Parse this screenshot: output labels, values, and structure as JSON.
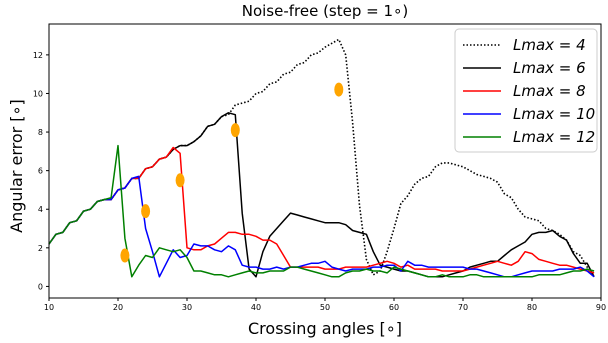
{
  "chart_data": {
    "type": "line",
    "title": "Noise-free (step = 1∘)",
    "xlabel": "Crossing angles [∘]",
    "ylabel": "Angular error [∘]",
    "xlim": [
      10,
      90
    ],
    "ylim": [
      -0.6,
      13.6
    ],
    "xticks": [
      10,
      20,
      30,
      40,
      50,
      60,
      70,
      80,
      90
    ],
    "yticks": [
      0,
      2,
      4,
      6,
      8,
      10,
      12
    ],
    "grid": false,
    "legend_position": "top-right",
    "series": [
      {
        "name": "L_max = 4",
        "legend_label": "Lmax = 4",
        "color": "#000000",
        "style": "dotted",
        "x": [
          10,
          11,
          12,
          13,
          14,
          15,
          16,
          17,
          18,
          19,
          20,
          21,
          22,
          23,
          24,
          25,
          26,
          27,
          28,
          29,
          30,
          31,
          32,
          33,
          34,
          35,
          36,
          37,
          38,
          39,
          40,
          41,
          42,
          43,
          44,
          45,
          46,
          47,
          48,
          49,
          50,
          51,
          52,
          53,
          54,
          55,
          56,
          57,
          58,
          59,
          60,
          61,
          62,
          63,
          64,
          65,
          66,
          67,
          68,
          69,
          70,
          71,
          72,
          73,
          74,
          75,
          76,
          77,
          78,
          79,
          80,
          81,
          82,
          83,
          84,
          85,
          86,
          87,
          88,
          89
        ],
        "y": [
          2.2,
          2.7,
          2.8,
          3.3,
          3.4,
          3.9,
          4.0,
          4.4,
          4.5,
          4.5,
          5.0,
          5.1,
          5.6,
          5.6,
          6.1,
          6.2,
          6.6,
          6.7,
          7.1,
          7.3,
          7.3,
          7.5,
          7.8,
          8.3,
          8.4,
          8.8,
          8.9,
          9.4,
          9.5,
          9.6,
          10.0,
          10.1,
          10.5,
          10.6,
          11.0,
          11.1,
          11.5,
          11.6,
          12.0,
          12.1,
          12.4,
          12.6,
          12.8,
          12.0,
          8.5,
          4.2,
          1.4,
          0.6,
          0.8,
          1.8,
          3.0,
          4.3,
          4.7,
          5.3,
          5.6,
          5.7,
          6.2,
          6.4,
          6.4,
          6.3,
          6.2,
          6.0,
          5.8,
          5.7,
          5.6,
          5.4,
          4.8,
          4.6,
          4.0,
          3.6,
          3.5,
          3.4,
          3.0,
          2.9,
          2.7,
          2.4,
          1.8,
          1.6,
          1.0,
          0.5
        ]
      },
      {
        "name": "L_max = 6",
        "legend_label": "Lmax = 6",
        "color": "#000000",
        "style": "solid",
        "x": [
          10,
          11,
          12,
          13,
          14,
          15,
          16,
          17,
          18,
          19,
          20,
          21,
          22,
          23,
          24,
          25,
          26,
          27,
          28,
          29,
          30,
          31,
          32,
          33,
          34,
          35,
          36,
          37,
          38,
          39,
          40,
          41,
          42,
          43,
          44,
          45,
          46,
          47,
          48,
          49,
          50,
          51,
          52,
          53,
          54,
          55,
          56,
          57,
          58,
          59,
          60,
          61,
          62,
          63,
          64,
          65,
          66,
          67,
          68,
          69,
          70,
          71,
          72,
          73,
          74,
          75,
          76,
          77,
          78,
          79,
          80,
          81,
          82,
          83,
          84,
          85,
          86,
          87,
          88,
          89
        ],
        "y": [
          2.2,
          2.7,
          2.8,
          3.3,
          3.4,
          3.9,
          4.0,
          4.4,
          4.5,
          4.5,
          5.0,
          5.1,
          5.6,
          5.6,
          6.1,
          6.2,
          6.6,
          6.7,
          7.1,
          7.3,
          7.3,
          7.5,
          7.8,
          8.3,
          8.4,
          8.8,
          9.0,
          8.9,
          3.8,
          0.9,
          0.5,
          1.8,
          2.6,
          3.0,
          3.4,
          3.8,
          3.7,
          3.6,
          3.5,
          3.4,
          3.3,
          3.3,
          3.3,
          3.2,
          2.9,
          2.8,
          2.7,
          1.8,
          1.1,
          1.0,
          0.9,
          0.8,
          0.8,
          0.7,
          0.6,
          0.5,
          0.5,
          0.5,
          0.6,
          0.7,
          0.8,
          1.0,
          1.1,
          1.2,
          1.3,
          1.3,
          1.6,
          1.9,
          2.1,
          2.3,
          2.7,
          2.8,
          2.8,
          2.9,
          2.6,
          2.4,
          1.7,
          1.2,
          1.2,
          0.5
        ]
      },
      {
        "name": "L_max = 8",
        "legend_label": "Lmax = 8",
        "color": "#ff0000",
        "style": "solid",
        "x": [
          10,
          11,
          12,
          13,
          14,
          15,
          16,
          17,
          18,
          19,
          20,
          21,
          22,
          23,
          24,
          25,
          26,
          27,
          28,
          29,
          30,
          31,
          32,
          33,
          34,
          35,
          36,
          37,
          38,
          39,
          40,
          41,
          42,
          43,
          44,
          45,
          46,
          47,
          48,
          49,
          50,
          51,
          52,
          53,
          54,
          55,
          56,
          57,
          58,
          59,
          60,
          61,
          62,
          63,
          64,
          65,
          66,
          67,
          68,
          69,
          70,
          71,
          72,
          73,
          74,
          75,
          76,
          77,
          78,
          79,
          80,
          81,
          82,
          83,
          84,
          85,
          86,
          87,
          88,
          89
        ],
        "y": [
          2.2,
          2.7,
          2.8,
          3.3,
          3.4,
          3.9,
          4.0,
          4.4,
          4.5,
          4.5,
          5.0,
          5.1,
          5.6,
          5.6,
          6.1,
          6.2,
          6.6,
          6.7,
          7.2,
          6.9,
          2.0,
          1.9,
          1.9,
          2.1,
          2.2,
          2.5,
          2.8,
          2.8,
          2.7,
          2.7,
          2.6,
          2.4,
          2.4,
          2.2,
          1.6,
          1.0,
          1.0,
          1.0,
          1.0,
          1.0,
          0.9,
          0.9,
          0.9,
          1.0,
          1.0,
          1.0,
          1.0,
          1.1,
          1.2,
          1.3,
          1.2,
          1.0,
          1.1,
          0.9,
          0.9,
          0.9,
          0.9,
          0.8,
          0.8,
          0.8,
          0.8,
          0.9,
          1.0,
          1.1,
          1.2,
          1.3,
          1.2,
          1.1,
          1.3,
          1.8,
          1.7,
          1.4,
          1.3,
          1.2,
          1.1,
          1.1,
          1.0,
          0.9,
          0.8,
          0.7
        ]
      },
      {
        "name": "L_max = 10",
        "legend_label": "Lmax = 10",
        "color": "#0000ff",
        "style": "solid",
        "x": [
          10,
          11,
          12,
          13,
          14,
          15,
          16,
          17,
          18,
          19,
          20,
          21,
          22,
          23,
          24,
          25,
          26,
          27,
          28,
          29,
          30,
          31,
          32,
          33,
          34,
          35,
          36,
          37,
          38,
          39,
          40,
          41,
          42,
          43,
          44,
          45,
          46,
          47,
          48,
          49,
          50,
          51,
          52,
          53,
          54,
          55,
          56,
          57,
          58,
          59,
          60,
          61,
          62,
          63,
          64,
          65,
          66,
          67,
          68,
          69,
          70,
          71,
          72,
          73,
          74,
          75,
          76,
          77,
          78,
          79,
          80,
          81,
          82,
          83,
          84,
          85,
          86,
          87,
          88,
          89
        ],
        "y": [
          2.2,
          2.7,
          2.8,
          3.3,
          3.4,
          3.9,
          4.0,
          4.4,
          4.5,
          4.5,
          5.0,
          5.1,
          5.6,
          5.7,
          3.0,
          1.8,
          0.5,
          1.2,
          1.9,
          1.5,
          1.6,
          2.2,
          2.1,
          2.1,
          1.9,
          1.8,
          2.1,
          1.9,
          1.1,
          1.0,
          1.0,
          0.9,
          0.9,
          1.0,
          0.9,
          1.0,
          1.0,
          1.1,
          1.2,
          1.2,
          1.3,
          1.0,
          0.9,
          0.8,
          0.9,
          0.9,
          0.9,
          1.0,
          1.0,
          1.1,
          1.1,
          0.8,
          1.3,
          1.1,
          1.1,
          1.0,
          1.0,
          1.0,
          1.0,
          1.0,
          1.0,
          0.9,
          0.9,
          0.8,
          0.7,
          0.6,
          0.5,
          0.5,
          0.6,
          0.7,
          0.8,
          0.8,
          0.8,
          0.8,
          0.9,
          0.9,
          0.9,
          1.0,
          0.8,
          0.5
        ]
      },
      {
        "name": "L_max = 12",
        "legend_label": "Lmax = 12",
        "color": "#008000",
        "style": "solid",
        "x": [
          10,
          11,
          12,
          13,
          14,
          15,
          16,
          17,
          18,
          19,
          20,
          21,
          22,
          23,
          24,
          25,
          26,
          27,
          28,
          29,
          30,
          31,
          32,
          33,
          34,
          35,
          36,
          37,
          38,
          39,
          40,
          41,
          42,
          43,
          44,
          45,
          46,
          47,
          48,
          49,
          50,
          51,
          52,
          53,
          54,
          55,
          56,
          57,
          58,
          59,
          60,
          61,
          62,
          63,
          64,
          65,
          66,
          67,
          68,
          69,
          70,
          71,
          72,
          73,
          74,
          75,
          76,
          77,
          78,
          79,
          80,
          81,
          82,
          83,
          84,
          85,
          86,
          87,
          88,
          89
        ],
        "y": [
          2.2,
          2.7,
          2.8,
          3.3,
          3.4,
          3.9,
          4.0,
          4.4,
          4.5,
          4.6,
          7.3,
          2.5,
          0.5,
          1.1,
          1.6,
          1.5,
          2.0,
          1.9,
          1.8,
          1.9,
          1.5,
          0.8,
          0.8,
          0.7,
          0.6,
          0.6,
          0.5,
          0.6,
          0.7,
          0.8,
          0.7,
          0.7,
          0.8,
          0.8,
          0.8,
          1.0,
          1.0,
          0.9,
          0.8,
          0.7,
          0.6,
          0.5,
          0.5,
          0.7,
          0.8,
          0.8,
          0.9,
          0.8,
          0.8,
          0.7,
          1.0,
          0.9,
          0.8,
          0.7,
          0.6,
          0.5,
          0.5,
          0.6,
          0.5,
          0.5,
          0.5,
          0.6,
          0.6,
          0.5,
          0.5,
          0.5,
          0.5,
          0.5,
          0.5,
          0.5,
          0.5,
          0.6,
          0.6,
          0.6,
          0.6,
          0.7,
          0.8,
          0.8,
          0.9,
          0.8
        ]
      }
    ],
    "markers": {
      "color": "#ffa500",
      "points": [
        {
          "x": 21,
          "y": 1.6
        },
        {
          "x": 24,
          "y": 3.9
        },
        {
          "x": 29,
          "y": 5.5
        },
        {
          "x": 37,
          "y": 8.1
        },
        {
          "x": 52,
          "y": 10.2
        }
      ]
    }
  }
}
